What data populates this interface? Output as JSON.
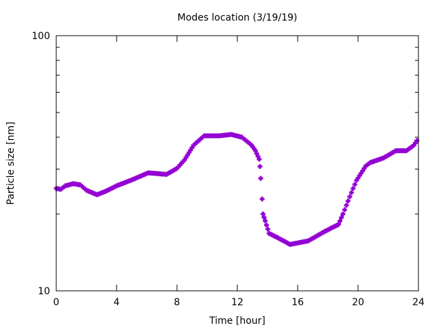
{
  "chart_data": {
    "type": "scatter",
    "title": "Modes location (3/19/19)",
    "xlabel": "Time [hour]",
    "ylabel": "Particle size [nm]",
    "xlim": [
      0,
      24
    ],
    "ylim": [
      10,
      100
    ],
    "yscale": "log",
    "grid": false,
    "x_ticks": [
      "0",
      "4",
      "8",
      "12",
      "16",
      "20",
      "24"
    ],
    "y_ticks": [
      "10",
      "100"
    ],
    "marker_color": "#9400d3",
    "series": [
      {
        "name": "mode",
        "points": [
          [
            0.0,
            25.2
          ],
          [
            0.3,
            25.0
          ],
          [
            0.6,
            25.8
          ],
          [
            1.14,
            26.3
          ],
          [
            1.6,
            26.0
          ],
          [
            2.0,
            24.8
          ],
          [
            2.7,
            23.8
          ],
          [
            3.3,
            24.6
          ],
          [
            4.0,
            25.8
          ],
          [
            5.0,
            27.2
          ],
          [
            6.1,
            29.0
          ],
          [
            7.3,
            28.6
          ],
          [
            8.0,
            30.2
          ],
          [
            8.5,
            32.6
          ],
          [
            9.1,
            37.2
          ],
          [
            9.8,
            40.5
          ],
          [
            10.8,
            40.5
          ],
          [
            11.6,
            41.0
          ],
          [
            12.3,
            40.0
          ],
          [
            12.95,
            37.2
          ],
          [
            13.2,
            35.4
          ],
          [
            13.45,
            32.8
          ],
          [
            13.5,
            30.7
          ],
          [
            13.55,
            27.6
          ],
          [
            13.64,
            22.9
          ],
          [
            13.7,
            20.0
          ],
          [
            13.85,
            18.8
          ],
          [
            14.1,
            16.8
          ],
          [
            14.8,
            16.0
          ],
          [
            15.5,
            15.2
          ],
          [
            16.7,
            15.7
          ],
          [
            17.8,
            17.1
          ],
          [
            18.7,
            18.2
          ],
          [
            19.0,
            20.0
          ],
          [
            19.45,
            23.4
          ],
          [
            19.9,
            27.1
          ],
          [
            20.5,
            30.8
          ],
          [
            20.8,
            31.8
          ],
          [
            21.7,
            33.2
          ],
          [
            22.5,
            35.4
          ],
          [
            23.2,
            35.4
          ],
          [
            23.7,
            37.2
          ],
          [
            23.9,
            38.8
          ]
        ]
      }
    ]
  }
}
